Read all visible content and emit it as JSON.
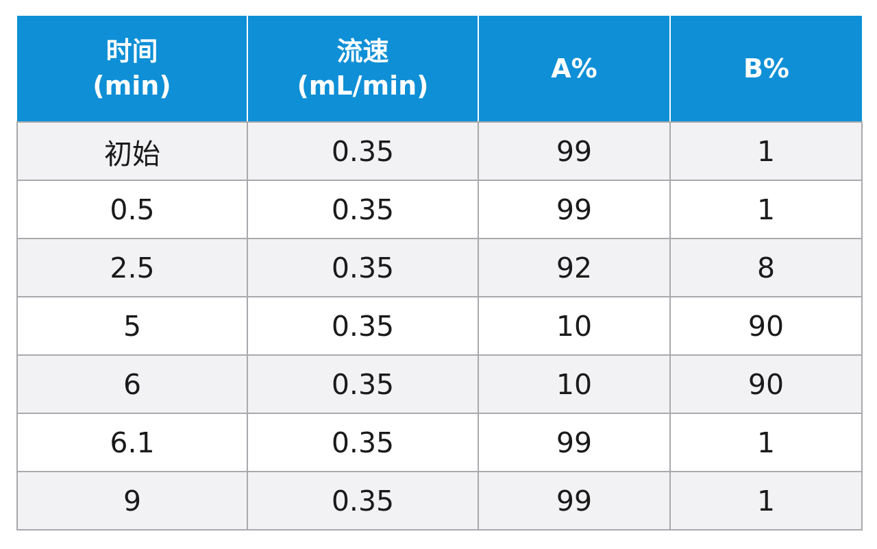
{
  "table": {
    "headers": [
      {
        "line1": "时间",
        "line2": "(min)"
      },
      {
        "line1": "流速",
        "line2": "(mL/min)"
      },
      {
        "line1": "A%",
        "line2": ""
      },
      {
        "line1": "B%",
        "line2": ""
      }
    ],
    "rows": [
      [
        "初始",
        "0.35",
        "99",
        "1"
      ],
      [
        "0.5",
        "0.35",
        "99",
        "1"
      ],
      [
        "2.5",
        "0.35",
        "92",
        "8"
      ],
      [
        "5",
        "0.35",
        "10",
        "90"
      ],
      [
        "6",
        "0.35",
        "10",
        "90"
      ],
      [
        "6.1",
        "0.35",
        "99",
        "1"
      ],
      [
        "9",
        "0.35",
        "99",
        "1"
      ]
    ]
  },
  "colors": {
    "header_bg": "#0e8fd6",
    "header_text": "#ffffff",
    "row_alt_bg": "#f2f2f4",
    "grid_line": "#a9a9ad"
  }
}
